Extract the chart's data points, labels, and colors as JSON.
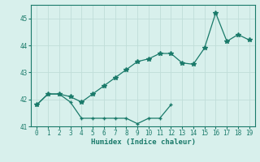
{
  "xlabel": "Humidex (Indice chaleur)",
  "x": [
    0,
    1,
    2,
    3,
    4,
    5,
    6,
    7,
    8,
    9,
    10,
    11,
    12,
    13,
    14,
    15,
    16,
    17,
    18,
    19
  ],
  "line1_x": [
    0,
    1,
    2,
    3,
    4,
    5,
    6,
    7,
    8,
    9,
    10,
    11,
    12
  ],
  "line1_y": [
    41.8,
    42.2,
    42.2,
    41.9,
    41.3,
    41.3,
    41.3,
    41.3,
    41.3,
    41.1,
    41.3,
    41.3,
    41.8
  ],
  "line2_x": [
    0,
    1,
    2,
    3,
    4,
    5,
    6,
    7,
    8,
    9,
    10,
    11,
    12,
    13,
    14,
    15,
    16,
    17,
    18,
    19
  ],
  "line2_y": [
    41.8,
    42.2,
    42.2,
    42.1,
    41.9,
    42.2,
    42.5,
    42.8,
    43.1,
    43.4,
    43.5,
    43.7,
    43.7,
    43.35,
    43.3,
    43.9,
    45.2,
    44.15,
    44.4,
    44.2
  ],
  "line_color": "#1a7a6a",
  "bg_color": "#d8f0ec",
  "grid_color": "#c0ddd8",
  "ylim": [
    41.0,
    45.5
  ],
  "xlim": [
    -0.5,
    19.5
  ],
  "yticks": [
    41,
    42,
    43,
    44,
    45
  ],
  "xticks": [
    0,
    1,
    2,
    3,
    4,
    5,
    6,
    7,
    8,
    9,
    10,
    11,
    12,
    13,
    14,
    15,
    16,
    17,
    18,
    19
  ]
}
